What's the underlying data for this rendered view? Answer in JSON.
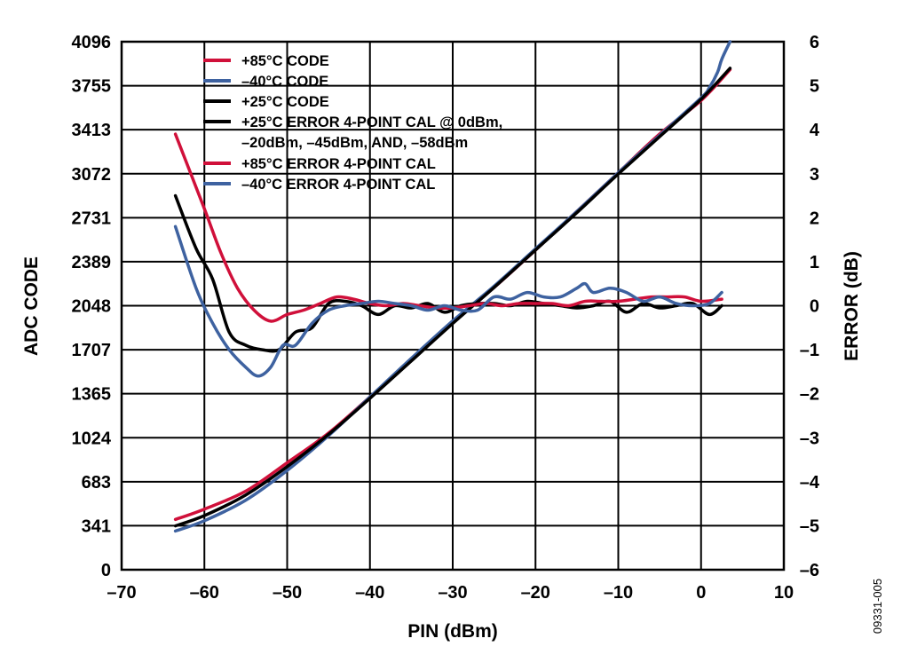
{
  "chart_data": {
    "type": "line",
    "xlabel": "PIN (dBm)",
    "ylabel": "ADC CODE",
    "y2label": "ERROR (dB)",
    "xlim": [
      -70,
      10
    ],
    "ylim": [
      0,
      4096
    ],
    "y2lim": [
      -6,
      6
    ],
    "x_ticks": [
      -70,
      -60,
      -50,
      -40,
      -30,
      -20,
      -10,
      0,
      10
    ],
    "x_tick_labels": [
      "–70",
      "–60",
      "–50",
      "–40",
      "–30",
      "–20",
      "–10",
      "0",
      "10"
    ],
    "y_ticks": [
      0,
      341,
      683,
      1024,
      1365,
      1707,
      2048,
      2389,
      2731,
      3072,
      3413,
      3755,
      4096
    ],
    "y_tick_labels": [
      "0",
      "341",
      "683",
      "1024",
      "1365",
      "1707",
      "2048",
      "2389",
      "2731",
      "3072",
      "3413",
      "3755",
      "4096"
    ],
    "y2_ticks": [
      -6,
      -5,
      -4,
      -3,
      -2,
      -1,
      0,
      1,
      2,
      3,
      4,
      5,
      6
    ],
    "y2_tick_labels": [
      "–6",
      "–5",
      "–4",
      "–3",
      "–2",
      "–1",
      "0",
      "1",
      "2",
      "3",
      "4",
      "5",
      "6"
    ],
    "grid": true,
    "legend_position": "top-left",
    "legend": [
      {
        "label": "+85°C CODE",
        "color": "#d0103a"
      },
      {
        "label": "–40°C CODE",
        "color": "#3e62a0"
      },
      {
        "label": "+25°C CODE",
        "color": "#000000"
      },
      {
        "label": "+25°C ERROR 4-POINT CAL @ 0dBm,",
        "label_line2": "–20dBm, –45dBm, AND, –58dBm",
        "color": "#000000"
      },
      {
        "label": "+85°C ERROR 4-POINT CAL",
        "color": "#d0103a"
      },
      {
        "label": "–40°C ERROR 4-POINT CAL",
        "color": "#3e62a0"
      }
    ],
    "series": [
      {
        "name": "+85°C CODE",
        "axis": "left",
        "color": "#d0103a",
        "x": [
          -63.5,
          -60,
          -55,
          -50,
          -45,
          -40,
          -35,
          -30,
          -25,
          -20,
          -15,
          -10,
          -5,
          0,
          3.5
        ],
        "y": [
          390,
          470,
          610,
          830,
          1060,
          1340,
          1630,
          1920,
          2190,
          2480,
          2780,
          3080,
          3380,
          3640,
          3880
        ]
      },
      {
        "name": "–40°C CODE",
        "axis": "left",
        "color": "#3e62a0",
        "x": [
          -63.5,
          -60,
          -55,
          -50,
          -45,
          -40,
          -35,
          -30,
          -25,
          -20,
          -15,
          -10,
          -5,
          0,
          1,
          2,
          2.5,
          3.5
        ],
        "y": [
          300,
          380,
          540,
          770,
          1040,
          1340,
          1640,
          1930,
          2200,
          2490,
          2780,
          3080,
          3370,
          3660,
          3740,
          3860,
          3960,
          4096
        ]
      },
      {
        "name": "+25°C CODE",
        "axis": "left",
        "color": "#000000",
        "x": [
          -63.5,
          -60,
          -55,
          -50,
          -45,
          -40,
          -35,
          -30,
          -25,
          -20,
          -15,
          -10,
          -5,
          0,
          3.5
        ],
        "y": [
          340,
          420,
          580,
          800,
          1050,
          1330,
          1620,
          1910,
          2190,
          2480,
          2770,
          3070,
          3360,
          3650,
          3890
        ]
      },
      {
        "name": "+25°C ERROR 4-POINT CAL",
        "axis": "right",
        "color": "#000000",
        "x": [
          -63.5,
          -61,
          -59,
          -57,
          -55,
          -53,
          -51,
          -49,
          -47,
          -45,
          -43,
          -41,
          -39,
          -37,
          -35,
          -33,
          -31,
          -29,
          -27,
          -25,
          -23,
          -21,
          -19,
          -17,
          -15,
          -13,
          -11,
          -9,
          -7,
          -5,
          -3,
          -1,
          1,
          2.5
        ],
        "y": [
          2.5,
          1.3,
          0.6,
          -0.6,
          -0.9,
          -1.0,
          -1.0,
          -0.6,
          -0.5,
          0.05,
          0.1,
          0.0,
          -0.2,
          0.0,
          -0.05,
          0.05,
          -0.15,
          0.0,
          0.05,
          0.05,
          0.0,
          0.1,
          0.05,
          0.0,
          -0.05,
          0.0,
          0.1,
          -0.15,
          0.05,
          -0.05,
          0.0,
          0.05,
          -0.2,
          0.0
        ]
      },
      {
        "name": "+85°C ERROR 4-POINT CAL",
        "axis": "right",
        "color": "#d0103a",
        "x": [
          -63.5,
          -60,
          -58,
          -56,
          -54,
          -52,
          -50,
          -48,
          -46,
          -44,
          -42,
          -40,
          -38,
          -36,
          -34,
          -32,
          -30,
          -28,
          -26,
          -24,
          -22,
          -20,
          -18,
          -16,
          -14,
          -12,
          -10,
          -8,
          -6,
          -4,
          -2,
          0,
          2.5
        ],
        "y": [
          3.9,
          2.2,
          1.2,
          0.4,
          -0.1,
          -0.35,
          -0.2,
          -0.1,
          0.05,
          0.2,
          0.15,
          0.05,
          0.0,
          0.05,
          0.0,
          -0.05,
          -0.05,
          0.0,
          0.05,
          0.0,
          0.05,
          0.05,
          0.05,
          0.0,
          0.1,
          0.1,
          0.1,
          0.15,
          0.2,
          0.2,
          0.2,
          0.1,
          0.15
        ]
      },
      {
        "name": "–40°C ERROR 4-POINT CAL",
        "axis": "right",
        "color": "#3e62a0",
        "x": [
          -63.5,
          -61,
          -59,
          -57,
          -55,
          -53.5,
          -52,
          -50.5,
          -49,
          -47,
          -45,
          -43,
          -41,
          -39,
          -37,
          -35,
          -33,
          -31,
          -29,
          -27,
          -25,
          -23,
          -21,
          -19,
          -17,
          -15,
          -14,
          -13,
          -11,
          -9,
          -7,
          -5,
          -3,
          -1,
          1,
          2.5
        ],
        "y": [
          1.8,
          0.4,
          -0.4,
          -1.0,
          -1.4,
          -1.6,
          -1.4,
          -0.9,
          -0.9,
          -0.4,
          -0.1,
          0.0,
          0.05,
          0.1,
          0.05,
          0.0,
          -0.1,
          0.0,
          -0.1,
          -0.1,
          0.2,
          0.15,
          0.3,
          0.2,
          0.2,
          0.4,
          0.5,
          0.3,
          0.4,
          0.3,
          0.1,
          0.2,
          0.05,
          0.0,
          0.05,
          0.3
        ]
      }
    ]
  },
  "figure_id": "09331-005"
}
